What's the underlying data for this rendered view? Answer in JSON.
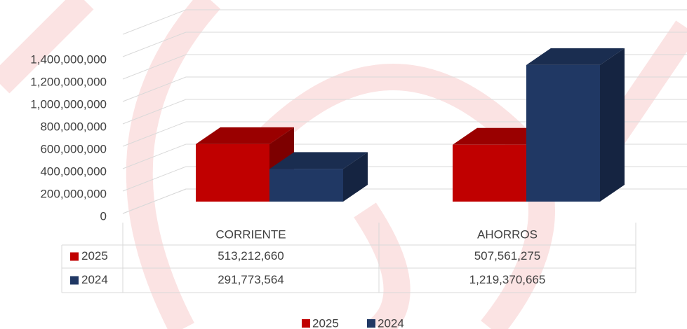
{
  "chart_data": {
    "type": "bar3d",
    "categories": [
      "CORRIENTE",
      "AHORROS"
    ],
    "series": [
      {
        "name": "2025",
        "color": "#c00000",
        "values": [
          513212660,
          507561275
        ],
        "value_labels": [
          "513,212,660",
          "507,561,275"
        ]
      },
      {
        "name": "2024",
        "color": "#203864",
        "values": [
          291773564,
          1219370665
        ],
        "value_labels": [
          "291,773,564",
          "1,219,370,665"
        ]
      }
    ],
    "ylim": [
      0,
      1600000000
    ],
    "yticks": [
      0,
      {
        "value": 200000000,
        "label": "200,000,000"
      },
      {
        "value": 400000000,
        "label": "400,000,000"
      },
      {
        "value": 600000000,
        "label": "600,000,000"
      },
      {
        "value": 800000000,
        "label": "800,000,000"
      },
      {
        "value": 1000000000,
        "label": "1,000,000,000"
      },
      {
        "value": 1200000000,
        "label": "1,200,000,000"
      },
      {
        "value": 1400000000,
        "label": "1,400,000,000"
      }
    ],
    "grid": true,
    "legend": "bottom",
    "data_table": true
  }
}
